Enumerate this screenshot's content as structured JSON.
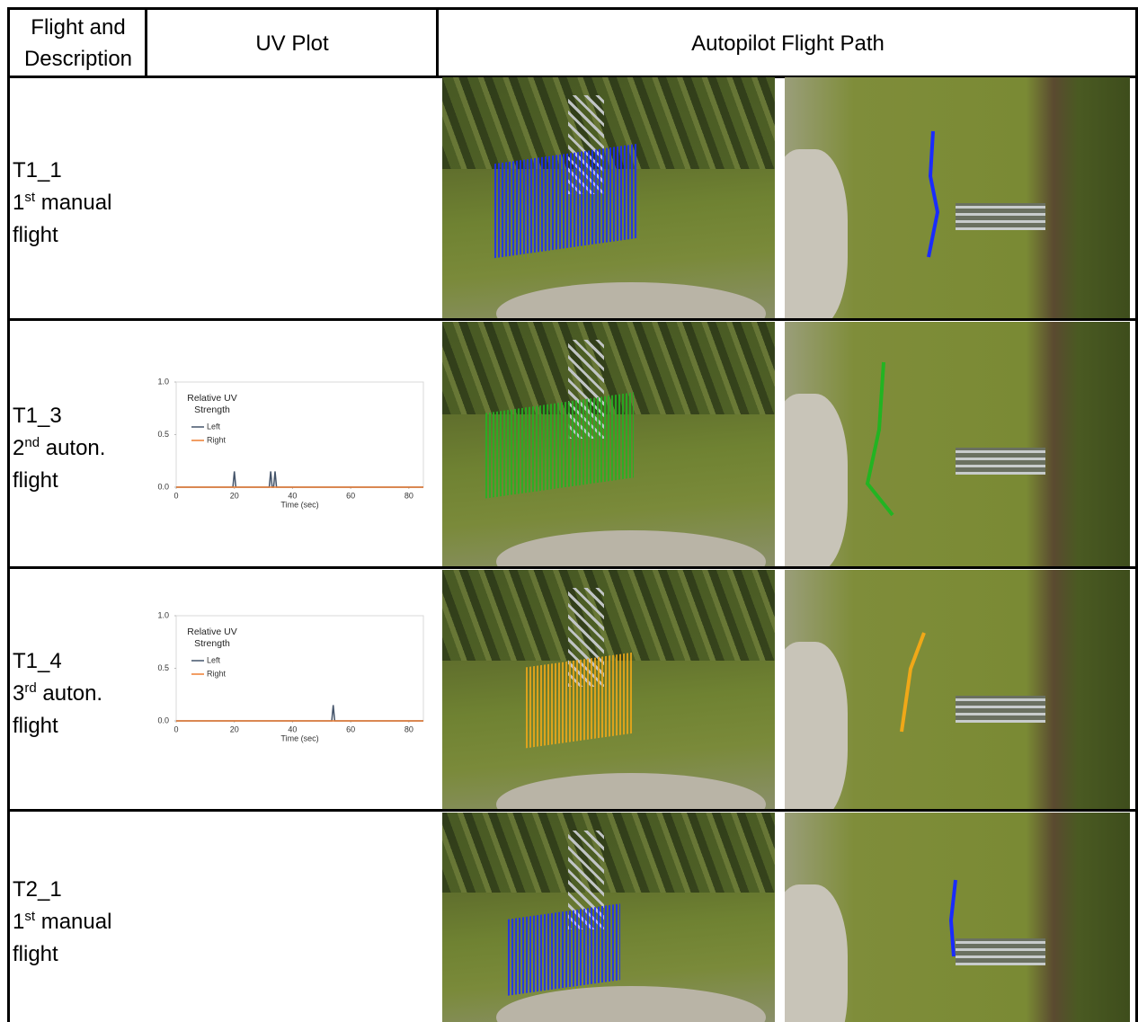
{
  "header": {
    "col1": "Flight and Description",
    "col2": "UV Plot",
    "col3": "Autopilot Flight Path"
  },
  "rows": [
    {
      "flight": "T1_1",
      "ordinal": "1",
      "suffix": "st",
      "description": "manual flight"
    },
    {
      "flight": "T1_3",
      "ordinal": "2",
      "suffix": "nd",
      "description": "auton. flight"
    },
    {
      "flight": "T1_4",
      "ordinal": "3",
      "suffix": "rd",
      "description": "auton. flight"
    },
    {
      "flight": "T2_1",
      "ordinal": "1",
      "suffix": "st",
      "description": "manual flight"
    }
  ],
  "chart_data": [
    {
      "type": "line",
      "legend_title": "Relative UV Strength",
      "xlabel": "Time (sec)",
      "x": [
        0,
        19.5,
        20,
        20.5,
        32,
        32.5,
        33,
        33.5,
        34,
        34.5,
        85
      ],
      "series": [
        {
          "name": "Left",
          "color": "#44546a",
          "values": [
            0,
            0,
            0.15,
            0,
            0,
            0.15,
            0,
            0,
            0.15,
            0,
            0
          ]
        },
        {
          "name": "Right",
          "color": "#ed7d31",
          "values": [
            0,
            0,
            0,
            0,
            0,
            0,
            0,
            0,
            0,
            0,
            0
          ]
        }
      ],
      "xlim": [
        0,
        85
      ],
      "xticks": [
        0,
        20,
        40,
        60,
        80
      ],
      "ylim": [
        0,
        1
      ],
      "yticks": [
        {
          "value": 0,
          "label": "0.0"
        },
        0.5,
        {
          "value": 1,
          "label": "1.0"
        }
      ],
      "legend": "upper left"
    },
    {
      "type": "line",
      "legend_title": "Relative UV Strength",
      "xlabel": "Time (sec)",
      "x": [
        0,
        53.5,
        54,
        54.5,
        85
      ],
      "series": [
        {
          "name": "Left",
          "color": "#44546a",
          "values": [
            0,
            0,
            0.15,
            0,
            0
          ]
        },
        {
          "name": "Right",
          "color": "#ed7d31",
          "values": [
            0,
            0,
            0,
            0,
            0
          ]
        }
      ],
      "xlim": [
        0,
        85
      ],
      "xticks": [
        0,
        20,
        40,
        60,
        80
      ],
      "ylim": [
        0,
        1
      ],
      "yticks": [
        {
          "value": 0,
          "label": "0.0"
        },
        0.5,
        {
          "value": 1,
          "label": "1.0"
        }
      ],
      "legend": "upper left"
    }
  ]
}
